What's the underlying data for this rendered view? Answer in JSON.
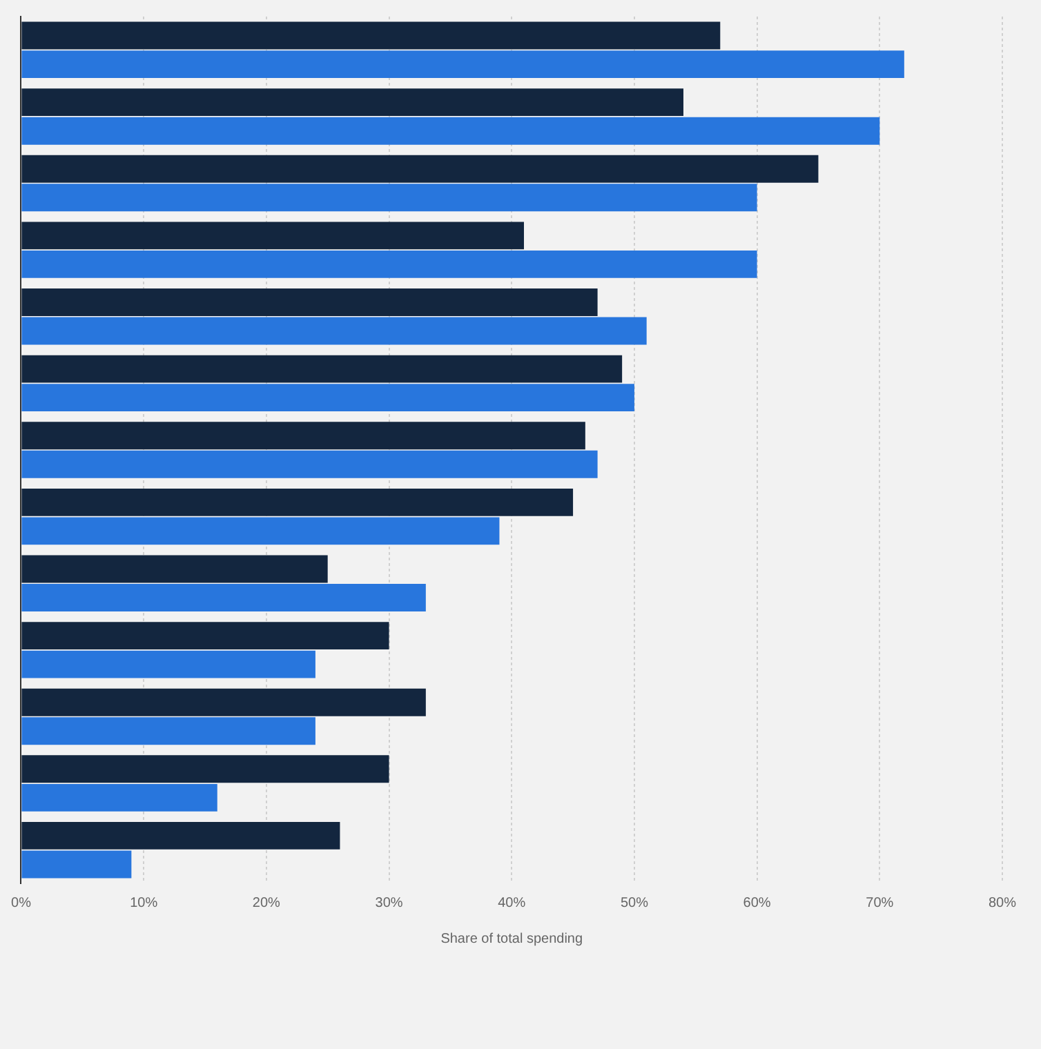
{
  "chart_data": {
    "type": "bar",
    "orientation": "horizontal",
    "xlabel": "Share of total spending",
    "categories": [
      null,
      null,
      null,
      null,
      null,
      null,
      null,
      null,
      null,
      null,
      null,
      null,
      null
    ],
    "series": [
      {
        "color": "#13263f",
        "values": [
          57,
          54,
          65,
          41,
          47,
          49,
          46,
          45,
          25,
          30,
          33,
          30,
          26
        ]
      },
      {
        "color": "#2876dd",
        "values": [
          72,
          70,
          60,
          60,
          51,
          50,
          47,
          39,
          33,
          24,
          24,
          16,
          9
        ]
      }
    ],
    "xlim": [
      0,
      80
    ],
    "xticks": [
      {
        "value": 0,
        "label": "0%"
      },
      {
        "value": 10,
        "label": "10%"
      },
      {
        "value": 20,
        "label": "20%"
      },
      {
        "value": 30,
        "label": "30%"
      },
      {
        "value": 40,
        "label": "40%"
      },
      {
        "value": 50,
        "label": "50%"
      },
      {
        "value": 60,
        "label": "60%"
      },
      {
        "value": 70,
        "label": "70%"
      },
      {
        "value": 80,
        "label": "80%"
      }
    ],
    "grid": "x",
    "legend": false,
    "tick_labels": "x"
  }
}
